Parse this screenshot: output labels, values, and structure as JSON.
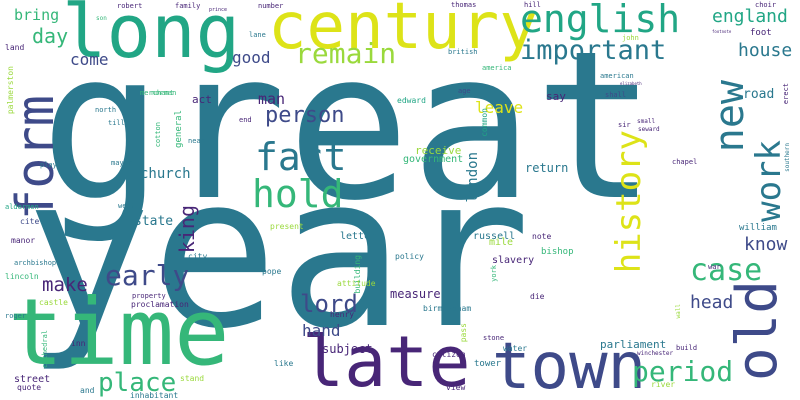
{
  "palette": {
    "background": "#ffffff",
    "teal": "#2a788e",
    "green": "#35b779",
    "purple": "#482677",
    "indigo": "#3e4a89",
    "yellow": "#dde318",
    "lime": "#9ad93c",
    "light_green": "#5ec962",
    "aqua": "#21a685"
  },
  "words": [
    {
      "text": "great",
      "color": "#2a788e"
    },
    {
      "text": "year",
      "color": "#2a788e"
    },
    {
      "text": "time",
      "color": "#35b779"
    },
    {
      "text": "long",
      "color": "#21a685"
    },
    {
      "text": "century",
      "color": "#dde318"
    },
    {
      "text": "late",
      "color": "#482677"
    },
    {
      "text": "town",
      "color": "#3e4a89"
    },
    {
      "text": "old",
      "color": "#3e4a89"
    },
    {
      "text": "form",
      "color": "#3e4a89"
    },
    {
      "text": "english",
      "color": "#21a685"
    },
    {
      "text": "fact",
      "color": "#2a788e"
    },
    {
      "text": "hold",
      "color": "#35b779"
    },
    {
      "text": "history",
      "color": "#dde318"
    },
    {
      "text": "important",
      "color": "#2a788e"
    },
    {
      "text": "remain",
      "color": "#9ad93c"
    },
    {
      "text": "new",
      "color": "#2a788e"
    },
    {
      "text": "work",
      "color": "#2a788e"
    },
    {
      "text": "case",
      "color": "#35b779"
    },
    {
      "text": "period",
      "color": "#35b779"
    },
    {
      "text": "early",
      "color": "#3e4a89"
    },
    {
      "text": "place",
      "color": "#35b779"
    },
    {
      "text": "lord",
      "color": "#3e4a89"
    },
    {
      "text": "make",
      "color": "#482677"
    },
    {
      "text": "person",
      "color": "#3e4a89"
    },
    {
      "text": "england",
      "color": "#21a685"
    },
    {
      "text": "day",
      "color": "#35b779"
    },
    {
      "text": "house",
      "color": "#2a788e"
    },
    {
      "text": "king",
      "color": "#482677"
    },
    {
      "text": "know",
      "color": "#3e4a89"
    },
    {
      "text": "head",
      "color": "#3e4a89"
    },
    {
      "text": "hand",
      "color": "#3e4a89"
    },
    {
      "text": "leave",
      "color": "#dde318"
    },
    {
      "text": "bring",
      "color": "#35b779"
    },
    {
      "text": "come",
      "color": "#3e4a89"
    },
    {
      "text": "good",
      "color": "#3e4a89"
    },
    {
      "text": "man",
      "color": "#482677"
    },
    {
      "text": "road",
      "color": "#2a788e"
    },
    {
      "text": "london",
      "color": "#2a788e"
    },
    {
      "text": "church",
      "color": "#2a788e"
    },
    {
      "text": "state",
      "color": "#2a788e"
    },
    {
      "text": "return",
      "color": "#2a788e"
    },
    {
      "text": "measure",
      "color": "#482677"
    },
    {
      "text": "subject",
      "color": "#482677"
    },
    {
      "text": "parliament",
      "color": "#2a788e"
    },
    {
      "text": "government",
      "color": "#35b779"
    },
    {
      "text": "receive",
      "color": "#9ad93c"
    },
    {
      "text": "act",
      "color": "#482677"
    },
    {
      "text": "say",
      "color": "#482677"
    },
    {
      "text": "foot",
      "color": "#482677"
    },
    {
      "text": "street",
      "color": "#482677"
    },
    {
      "text": "william",
      "color": "#2a788e"
    },
    {
      "text": "russell",
      "color": "#2a788e"
    },
    {
      "text": "letter",
      "color": "#2a788e"
    },
    {
      "text": "general",
      "color": "#35b779"
    },
    {
      "text": "common",
      "color": "#21a685"
    },
    {
      "text": "edward",
      "color": "#21a685"
    },
    {
      "text": "mile",
      "color": "#9ad93c"
    },
    {
      "text": "bishop",
      "color": "#35b779"
    },
    {
      "text": "slavery",
      "color": "#482677"
    },
    {
      "text": "note",
      "color": "#482677"
    },
    {
      "text": "policy",
      "color": "#2a788e"
    },
    {
      "text": "building",
      "color": "#35b779"
    },
    {
      "text": "henry",
      "color": "#482677"
    },
    {
      "text": "birmingham",
      "color": "#2a788e"
    },
    {
      "text": "proclamation",
      "color": "#482677"
    },
    {
      "text": "property",
      "color": "#482677"
    },
    {
      "text": "castle",
      "color": "#9ad93c"
    },
    {
      "text": "archbishop",
      "color": "#2a788e"
    },
    {
      "text": "lincoln",
      "color": "#35b779"
    },
    {
      "text": "manor",
      "color": "#482677"
    },
    {
      "text": "cite",
      "color": "#3e4a89"
    },
    {
      "text": "aldermen",
      "color": "#21a685"
    },
    {
      "text": "play",
      "color": "#2a788e"
    },
    {
      "text": "mayor",
      "color": "#2a788e"
    },
    {
      "text": "north",
      "color": "#2a788e"
    },
    {
      "text": "till",
      "color": "#2a788e"
    },
    {
      "text": "merchant",
      "color": "#35b779"
    },
    {
      "text": "norman",
      "color": "#35b779"
    },
    {
      "text": "family",
      "color": "#482677"
    },
    {
      "text": "number",
      "color": "#482677"
    },
    {
      "text": "lane",
      "color": "#2a788e"
    },
    {
      "text": "john",
      "color": "#9ad93c"
    },
    {
      "text": "british",
      "color": "#2a788e"
    },
    {
      "text": "america",
      "color": "#35b779"
    },
    {
      "text": "american",
      "color": "#2a788e"
    },
    {
      "text": "thomas",
      "color": "#482677"
    },
    {
      "text": "hill",
      "color": "#482677"
    },
    {
      "text": "choir",
      "color": "#482677"
    },
    {
      "text": "son",
      "color": "#35b779"
    },
    {
      "text": "age",
      "color": "#3e4a89"
    },
    {
      "text": "shall",
      "color": "#3e4a89"
    },
    {
      "text": "sir",
      "color": "#482677"
    },
    {
      "text": "small",
      "color": "#482677"
    },
    {
      "text": "seward",
      "color": "#482677"
    },
    {
      "text": "chapel",
      "color": "#482677"
    },
    {
      "text": "war",
      "color": "#482677"
    },
    {
      "text": "wall",
      "color": "#9ad93c"
    },
    {
      "text": "erect",
      "color": "#482677"
    },
    {
      "text": "southern",
      "color": "#2a788e"
    },
    {
      "text": "build",
      "color": "#482677"
    },
    {
      "text": "winchester",
      "color": "#482677"
    },
    {
      "text": "river",
      "color": "#9ad93c"
    },
    {
      "text": "stone",
      "color": "#482677"
    },
    {
      "text": "tower",
      "color": "#2a788e"
    },
    {
      "text": "water",
      "color": "#2a788e"
    },
    {
      "text": "citizen",
      "color": "#482677"
    },
    {
      "text": "view",
      "color": "#482677"
    },
    {
      "text": "pass",
      "color": "#9ad93c"
    },
    {
      "text": "die",
      "color": "#482677"
    },
    {
      "text": "york",
      "color": "#35b779"
    },
    {
      "text": "attitude",
      "color": "#9ad93c"
    },
    {
      "text": "pope",
      "color": "#2a788e"
    },
    {
      "text": "present",
      "color": "#9ad93c"
    },
    {
      "text": "city",
      "color": "#2a788e"
    },
    {
      "text": "like",
      "color": "#2a788e"
    },
    {
      "text": "stand",
      "color": "#9ad93c"
    },
    {
      "text": "inhabitant",
      "color": "#2a788e"
    },
    {
      "text": "inn",
      "color": "#482677"
    },
    {
      "text": "and",
      "color": "#2a788e"
    },
    {
      "text": "quote",
      "color": "#482677"
    },
    {
      "text": "cathedral",
      "color": "#35b779"
    },
    {
      "text": "roger",
      "color": "#2a788e"
    },
    {
      "text": "west",
      "color": "#2a788e"
    },
    {
      "text": "cotton",
      "color": "#35b779"
    },
    {
      "text": "near",
      "color": "#2a788e"
    },
    {
      "text": "end",
      "color": "#482677"
    },
    {
      "text": "palmerston",
      "color": "#9ad93c"
    },
    {
      "text": "land",
      "color": "#482677"
    },
    {
      "text": "robert",
      "color": "#482677"
    },
    {
      "text": "prince",
      "color": "#482677"
    },
    {
      "text": "elizabeth",
      "color": "#482677"
    },
    {
      "text": "footnote",
      "color": "#482677"
    }
  ]
}
